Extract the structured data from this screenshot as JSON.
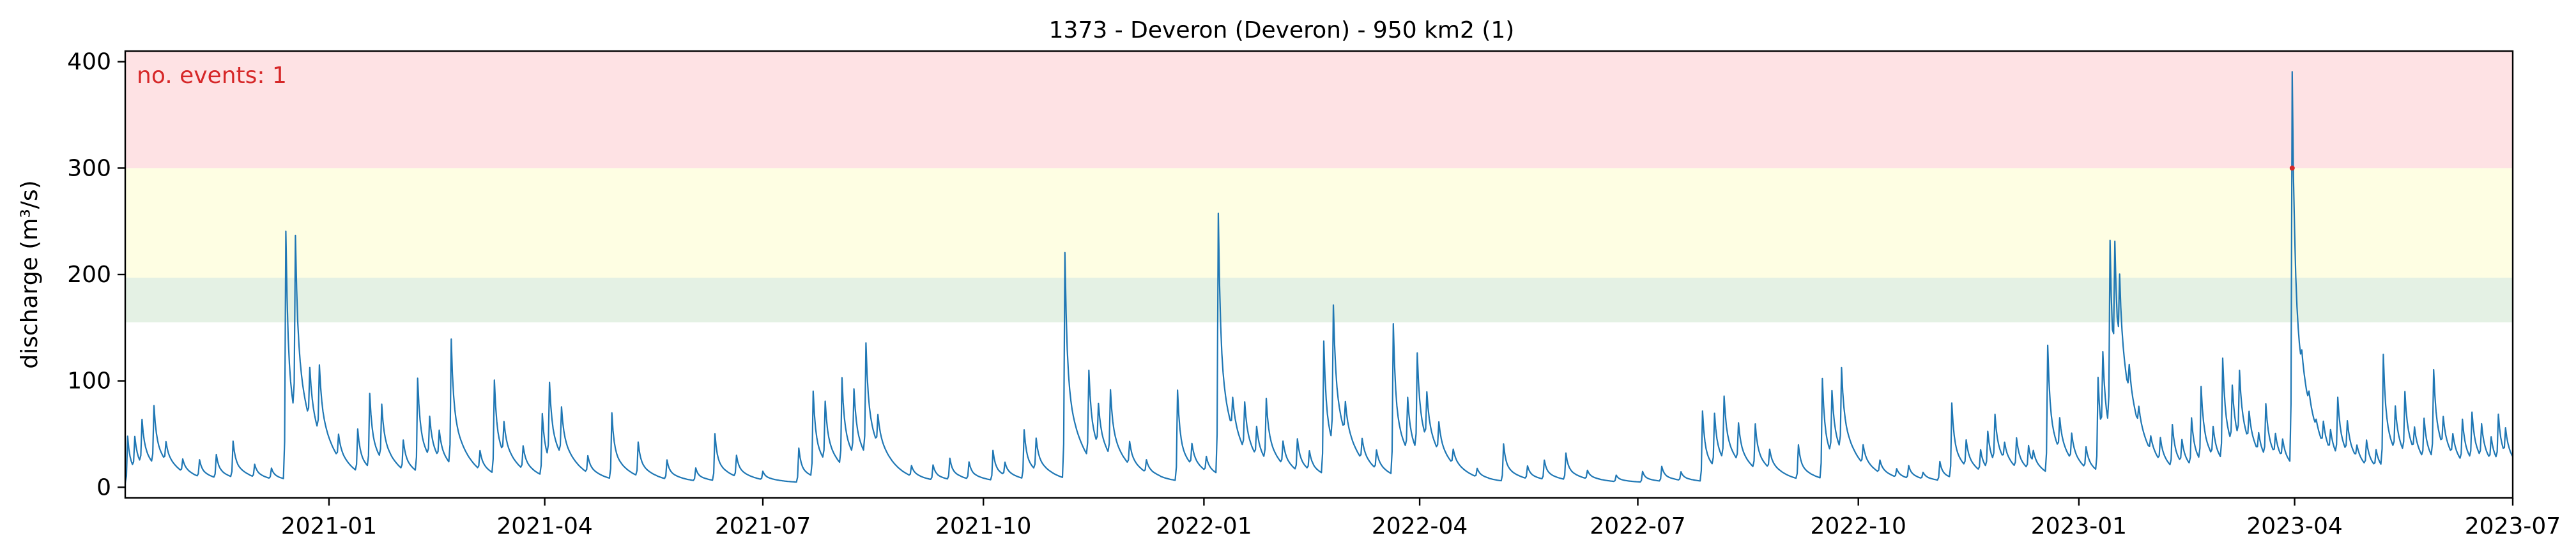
{
  "chart_data": {
    "type": "line",
    "title": "1373 - Deveron (Deveron) - 950 km2 (1)",
    "xlabel": "",
    "ylabel": "discharge (m³/s)",
    "xlim": [
      "2020-10-08",
      "2023-07-01"
    ],
    "ylim": [
      -10,
      410
    ],
    "y_ticks": [
      0,
      100,
      200,
      300,
      400
    ],
    "x_ticks": [
      "2021-01",
      "2021-04",
      "2021-07",
      "2021-10",
      "2022-01",
      "2022-04",
      "2022-07",
      "2022-10",
      "2023-01",
      "2023-04",
      "2023-07"
    ],
    "grid": false,
    "threshold_bands": [
      {
        "name": "low",
        "from": 155,
        "to": 197,
        "color": "#e4f1e4"
      },
      {
        "name": "medium",
        "from": 197,
        "to": 300,
        "color": "#fefee3"
      },
      {
        "name": "high",
        "from": 300,
        "to": 410,
        "color": "#fee2e4"
      }
    ],
    "series": [
      {
        "color": "#1f77b4",
        "baseline": 4,
        "peaks": [
          [
            "2020-10-09",
            44
          ],
          [
            "2020-10-12",
            30
          ],
          [
            "2020-10-15",
            42
          ],
          [
            "2020-10-20",
            55
          ],
          [
            "2020-10-25",
            18
          ],
          [
            "2020-11-01",
            12
          ],
          [
            "2020-11-08",
            16
          ],
          [
            "2020-11-15",
            22
          ],
          [
            "2020-11-22",
            34
          ],
          [
            "2020-12-01",
            12
          ],
          [
            "2020-12-08",
            10
          ],
          [
            "2020-12-14",
            233
          ],
          [
            "2020-12-18",
            170
          ],
          [
            "2020-12-24",
            50
          ],
          [
            "2020-12-28",
            65
          ],
          [
            "2021-01-05",
            22
          ],
          [
            "2021-01-13",
            40
          ],
          [
            "2021-01-18",
            70
          ],
          [
            "2021-01-23",
            52
          ],
          [
            "2021-02-01",
            28
          ],
          [
            "2021-02-07",
            88
          ],
          [
            "2021-02-12",
            38
          ],
          [
            "2021-02-16",
            26
          ],
          [
            "2021-02-21",
            118
          ],
          [
            "2021-03-05",
            18
          ],
          [
            "2021-03-11",
            88
          ],
          [
            "2021-03-15",
            30
          ],
          [
            "2021-03-23",
            22
          ],
          [
            "2021-03-31",
            58
          ],
          [
            "2021-04-03",
            72
          ],
          [
            "2021-04-08",
            45
          ],
          [
            "2021-04-19",
            16
          ],
          [
            "2021-04-29",
            62
          ],
          [
            "2021-05-10",
            32
          ],
          [
            "2021-05-22",
            18
          ],
          [
            "2021-06-03",
            12
          ],
          [
            "2021-06-11",
            44
          ],
          [
            "2021-06-20",
            20
          ],
          [
            "2021-07-01",
            8
          ],
          [
            "2021-07-16",
            32
          ],
          [
            "2021-07-22",
            80
          ],
          [
            "2021-07-27",
            56
          ],
          [
            "2021-08-03",
            82
          ],
          [
            "2021-08-08",
            62
          ],
          [
            "2021-08-13",
            105
          ],
          [
            "2021-08-18",
            28
          ],
          [
            "2021-09-01",
            10
          ],
          [
            "2021-09-10",
            14
          ],
          [
            "2021-09-17",
            20
          ],
          [
            "2021-09-25",
            16
          ],
          [
            "2021-10-05",
            28
          ],
          [
            "2021-10-10",
            12
          ],
          [
            "2021-10-18",
            46
          ],
          [
            "2021-10-23",
            30
          ],
          [
            "2021-11-04",
            212
          ],
          [
            "2021-11-14",
            82
          ],
          [
            "2021-11-18",
            40
          ],
          [
            "2021-11-23",
            62
          ],
          [
            "2021-12-01",
            22
          ],
          [
            "2021-12-08",
            12
          ],
          [
            "2021-12-21",
            85
          ],
          [
            "2021-12-27",
            20
          ],
          [
            "2022-01-02",
            14
          ],
          [
            "2022-01-07",
            245
          ],
          [
            "2022-01-13",
            30
          ],
          [
            "2022-01-18",
            45
          ],
          [
            "2022-01-23",
            28
          ],
          [
            "2022-01-27",
            58
          ],
          [
            "2022-02-03",
            22
          ],
          [
            "2022-02-09",
            30
          ],
          [
            "2022-02-14",
            18
          ],
          [
            "2022-02-20",
            125
          ],
          [
            "2022-02-24",
            130
          ],
          [
            "2022-03-01",
            30
          ],
          [
            "2022-03-08",
            20
          ],
          [
            "2022-03-14",
            18
          ],
          [
            "2022-03-21",
            142
          ],
          [
            "2022-03-27",
            50
          ],
          [
            "2022-03-31",
            92
          ],
          [
            "2022-04-04",
            45
          ],
          [
            "2022-04-09",
            28
          ],
          [
            "2022-04-15",
            14
          ],
          [
            "2022-04-25",
            8
          ],
          [
            "2022-05-06",
            35
          ],
          [
            "2022-05-16",
            12
          ],
          [
            "2022-05-23",
            18
          ],
          [
            "2022-06-01",
            25
          ],
          [
            "2022-06-10",
            8
          ],
          [
            "2022-06-22",
            6
          ],
          [
            "2022-07-03",
            10
          ],
          [
            "2022-07-11",
            14
          ],
          [
            "2022-07-19",
            8
          ],
          [
            "2022-07-28",
            66
          ],
          [
            "2022-08-02",
            50
          ],
          [
            "2022-08-06",
            60
          ],
          [
            "2022-08-12",
            36
          ],
          [
            "2022-08-19",
            42
          ],
          [
            "2022-08-25",
            18
          ],
          [
            "2022-09-06",
            32
          ],
          [
            "2022-09-16",
            94
          ],
          [
            "2022-09-20",
            60
          ],
          [
            "2022-09-24",
            78
          ],
          [
            "2022-10-03",
            18
          ],
          [
            "2022-10-10",
            12
          ],
          [
            "2022-10-17",
            8
          ],
          [
            "2022-10-22",
            12
          ],
          [
            "2022-10-28",
            6
          ],
          [
            "2022-11-04",
            18
          ],
          [
            "2022-11-09",
            70
          ],
          [
            "2022-11-15",
            25
          ],
          [
            "2022-11-21",
            20
          ],
          [
            "2022-11-24",
            35
          ],
          [
            "2022-11-27",
            45
          ],
          [
            "2022-12-01",
            16
          ],
          [
            "2022-12-06",
            28
          ],
          [
            "2022-12-11",
            22
          ],
          [
            "2022-12-13",
            12
          ],
          [
            "2022-12-19",
            120
          ],
          [
            "2022-12-24",
            30
          ],
          [
            "2022-12-29",
            25
          ],
          [
            "2023-01-04",
            20
          ],
          [
            "2023-01-09",
            88
          ],
          [
            "2023-01-11",
            80
          ],
          [
            "2023-01-14",
            178
          ],
          [
            "2023-01-16",
            120
          ],
          [
            "2023-01-18",
            75
          ],
          [
            "2023-01-22",
            28
          ],
          [
            "2023-01-26",
            18
          ],
          [
            "2023-01-31",
            14
          ],
          [
            "2023-02-04",
            22
          ],
          [
            "2023-02-09",
            40
          ],
          [
            "2023-02-13",
            22
          ],
          [
            "2023-02-17",
            45
          ],
          [
            "2023-02-21",
            70
          ],
          [
            "2023-02-26",
            28
          ],
          [
            "2023-03-02",
            96
          ],
          [
            "2023-03-06",
            55
          ],
          [
            "2023-03-09",
            65
          ],
          [
            "2023-03-13",
            28
          ],
          [
            "2023-03-17",
            18
          ],
          [
            "2023-03-20",
            50
          ],
          [
            "2023-03-24",
            20
          ],
          [
            "2023-03-27",
            18
          ],
          [
            "2023-04-01",
            10
          ],
          [
            "2023-03-31",
            369
          ],
          [
            "2023-04-04",
            16
          ],
          [
            "2023-04-07",
            12
          ],
          [
            "2023-04-10",
            8
          ],
          [
            "2023-04-13",
            22
          ],
          [
            "2023-04-16",
            20
          ],
          [
            "2023-04-19",
            55
          ],
          [
            "2023-04-23",
            30
          ],
          [
            "2023-04-27",
            12
          ],
          [
            "2023-05-01",
            24
          ],
          [
            "2023-05-05",
            16
          ],
          [
            "2023-05-08",
            106
          ],
          [
            "2023-05-13",
            42
          ],
          [
            "2023-05-17",
            58
          ],
          [
            "2023-05-21",
            22
          ],
          [
            "2023-05-25",
            38
          ],
          [
            "2023-05-29",
            84
          ],
          [
            "2023-06-02",
            28
          ],
          [
            "2023-06-06",
            20
          ],
          [
            "2023-06-10",
            40
          ],
          [
            "2023-06-14",
            45
          ],
          [
            "2023-06-18",
            32
          ],
          [
            "2023-06-22",
            22
          ],
          [
            "2023-06-25",
            44
          ],
          [
            "2023-06-28",
            25
          ]
        ]
      }
    ],
    "events": [
      {
        "x": "2023-03-31",
        "y": 300,
        "color": "#d62728"
      }
    ],
    "annotation": {
      "text": "no. events: 1",
      "color": "#d62728",
      "placement": "top-left"
    }
  }
}
